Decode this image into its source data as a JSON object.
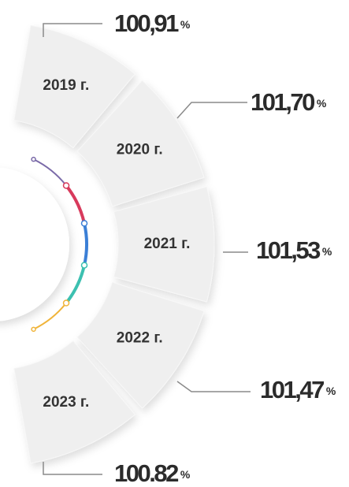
{
  "items": [
    {
      "year": "2019 г.",
      "value": "100,91",
      "unit": "%"
    },
    {
      "year": "2020 г.",
      "value": "101,70",
      "unit": "%"
    },
    {
      "year": "2021 г.",
      "value": "101,53",
      "unit": "%"
    },
    {
      "year": "2022 г.",
      "value": "101,47",
      "unit": "%"
    },
    {
      "year": "2023 г.",
      "value": "100.82",
      "unit": "%"
    }
  ]
}
